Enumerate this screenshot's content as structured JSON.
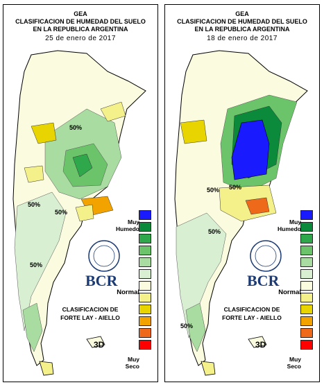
{
  "panels": [
    {
      "org": "GEA",
      "title_line1": "CLASIFICACION DE HUMEDAD DEL SUELO",
      "title_line2": "EN LA REPUBLICA ARGENTINA",
      "date": "25 de enero de 2017",
      "contour_labels": [
        "50%",
        "50%",
        "50%",
        "50%"
      ]
    },
    {
      "org": "GEA",
      "title_line1": "CLASIFICACION DE HUMEDAD DEL SUELO",
      "title_line2": "EN LA REPUBLICA ARGENTINA",
      "date": "18 de enero de 2017",
      "contour_labels": [
        "50%",
        "50%",
        "50%",
        "50%"
      ]
    }
  ],
  "legend": {
    "top_label_1": "Muy",
    "top_label_2": "Humedo",
    "mid_label": "Normal",
    "bottom_label_1": "Muy",
    "bottom_label_2": "Seco",
    "colors": [
      "#1a1aff",
      "#0a8a3a",
      "#2ea84a",
      "#6cc46a",
      "#a8dca0",
      "#d8efd2",
      "#fbfbe0",
      "#f4f08a",
      "#e8d400",
      "#f2a300",
      "#ee6a1a",
      "#ff0000"
    ]
  },
  "classification": {
    "line1": "CLASIFICACION DE",
    "line2": "FORTE LAY - AIELLO"
  },
  "brand": {
    "name": "BCR",
    "logo_text": "3D"
  }
}
